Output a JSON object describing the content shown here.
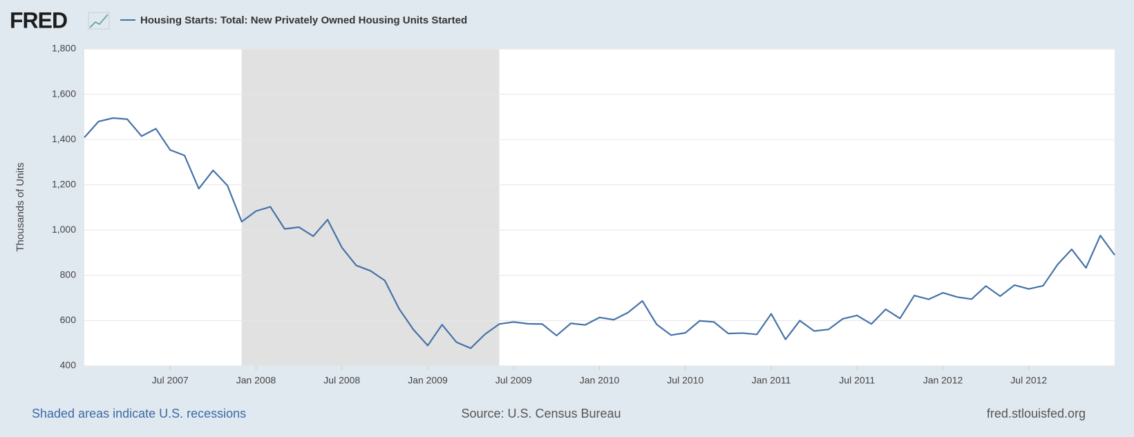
{
  "chart_data": {
    "type": "line",
    "logo": "FRED",
    "title": "Housing Starts: Total: New Privately Owned Housing Units Started",
    "y_label": "Thousands of Units",
    "footer_left": "Shaded areas indicate U.S. recessions",
    "source": "Source: U.S. Census Bureau",
    "footer_right": "fred.stlouisfed.org",
    "x": [
      "2007-01",
      "2007-02",
      "2007-03",
      "2007-04",
      "2007-05",
      "2007-06",
      "2007-07",
      "2007-08",
      "2007-09",
      "2007-10",
      "2007-11",
      "2007-12",
      "2008-01",
      "2008-02",
      "2008-03",
      "2008-04",
      "2008-05",
      "2008-06",
      "2008-07",
      "2008-08",
      "2008-09",
      "2008-10",
      "2008-11",
      "2008-12",
      "2009-01",
      "2009-02",
      "2009-03",
      "2009-04",
      "2009-05",
      "2009-06",
      "2009-07",
      "2009-08",
      "2009-09",
      "2009-10",
      "2009-11",
      "2009-12",
      "2010-01",
      "2010-02",
      "2010-03",
      "2010-04",
      "2010-05",
      "2010-06",
      "2010-07",
      "2010-08",
      "2010-09",
      "2010-10",
      "2010-11",
      "2010-12",
      "2011-01",
      "2011-02",
      "2011-03",
      "2011-04",
      "2011-05",
      "2011-06",
      "2011-07",
      "2011-08",
      "2011-09",
      "2011-10",
      "2011-11",
      "2011-12",
      "2012-01",
      "2012-02",
      "2012-03",
      "2012-04",
      "2012-05",
      "2012-06",
      "2012-07",
      "2012-08",
      "2012-09",
      "2012-10",
      "2012-11",
      "2012-12",
      "2013-01"
    ],
    "series": [
      {
        "name": "Housing Starts: Total: New Privately Owned Housing Units Started",
        "color": "#4572a7",
        "values": [
          1409,
          1480,
          1495,
          1490,
          1415,
          1448,
          1354,
          1330,
          1183,
          1264,
          1197,
          1037,
          1084,
          1103,
          1005,
          1013,
          973,
          1046,
          923,
          844,
          820,
          777,
          652,
          560,
          490,
          582,
          505,
          478,
          540,
          585,
          594,
          586,
          585,
          534,
          588,
          581,
          614,
          604,
          636,
          687,
          583,
          536,
          546,
          599,
          594,
          543,
          545,
          539,
          630,
          517,
          600,
          554,
          561,
          608,
          623,
          585,
          650,
          610,
          711,
          694,
          723,
          704,
          695,
          753,
          708,
          757,
          740,
          754,
          847,
          915,
          833,
          976,
          890
        ]
      }
    ],
    "recessions": [
      {
        "start": "2007-12",
        "end": "2009-06"
      }
    ],
    "recession_color": "#e1e1e1",
    "xlim": [
      "2007-01",
      "2013-01"
    ],
    "xticks": [
      {
        "value": "2007-07",
        "label": "Jul 2007"
      },
      {
        "value": "2008-01",
        "label": "Jan 2008"
      },
      {
        "value": "2008-07",
        "label": "Jul 2008"
      },
      {
        "value": "2009-01",
        "label": "Jan 2009"
      },
      {
        "value": "2009-07",
        "label": "Jul 2009"
      },
      {
        "value": "2010-01",
        "label": "Jan 2010"
      },
      {
        "value": "2010-07",
        "label": "Jul 2010"
      },
      {
        "value": "2011-01",
        "label": "Jan 2011"
      },
      {
        "value": "2011-07",
        "label": "Jul 2011"
      },
      {
        "value": "2012-01",
        "label": "Jan 2012"
      },
      {
        "value": "2012-07",
        "label": "Jul 2012"
      }
    ],
    "ylim": [
      400,
      1800
    ],
    "yticks": [
      400,
      600,
      800,
      {
        "value": 1000,
        "label": "1,000"
      },
      {
        "value": 1200,
        "label": "1,200"
      },
      {
        "value": 1400,
        "label": "1,400"
      },
      {
        "value": 1600,
        "label": "1,600"
      },
      {
        "value": 1800,
        "label": "1,800"
      }
    ],
    "grid": true
  }
}
